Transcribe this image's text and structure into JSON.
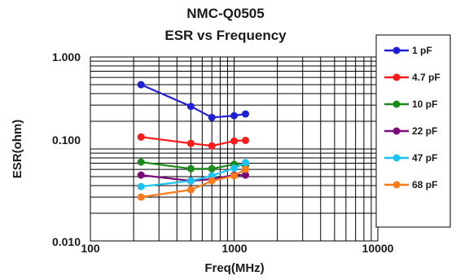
{
  "chart_data": {
    "type": "line",
    "title": "NMC-Q0505",
    "subtitle": "ESR vs Frequency",
    "xlabel": "Freq(MHz)",
    "ylabel": "ESR(ohm)",
    "xscale": "log",
    "yscale": "log",
    "xlim": [
      100,
      10000
    ],
    "ylim": [
      0.01,
      1
    ],
    "x_ticks": [
      "100",
      "1000",
      "10000"
    ],
    "y_ticks": [
      "1.000",
      "0.100",
      "0.010"
    ],
    "grid": true,
    "legend_position": "right",
    "series": [
      {
        "name": "1 pF",
        "color": "#1f1fd6",
        "x": [
          225,
          500,
          700,
          1000,
          1200
        ],
        "y": [
          0.5,
          0.29,
          0.22,
          0.23,
          0.24
        ]
      },
      {
        "name": "4.7 pF",
        "color": "#ff1a1a",
        "x": [
          225,
          500,
          700,
          1000,
          1200
        ],
        "y": [
          0.135,
          0.115,
          0.108,
          0.122,
          0.124
        ]
      },
      {
        "name": "10 pF",
        "color": "#1a8a1a",
        "x": [
          225,
          500,
          700,
          1000,
          1200
        ],
        "y": [
          0.072,
          0.061,
          0.061,
          0.068,
          0.066
        ]
      },
      {
        "name": "22 pF",
        "color": "#7a0a7a",
        "x": [
          225,
          500,
          700,
          1000,
          1200
        ],
        "y": [
          0.052,
          0.045,
          0.047,
          0.052,
          0.052
        ]
      },
      {
        "name": "47 pF",
        "color": "#19c3f0",
        "x": [
          225,
          500,
          700,
          1000,
          1200
        ],
        "y": [
          0.039,
          0.045,
          0.051,
          0.062,
          0.071
        ]
      },
      {
        "name": "68 pF",
        "color": "#ff7a1a",
        "x": [
          225,
          500,
          700,
          1000,
          1200
        ],
        "y": [
          0.03,
          0.036,
          0.045,
          0.051,
          0.06
        ]
      }
    ]
  }
}
